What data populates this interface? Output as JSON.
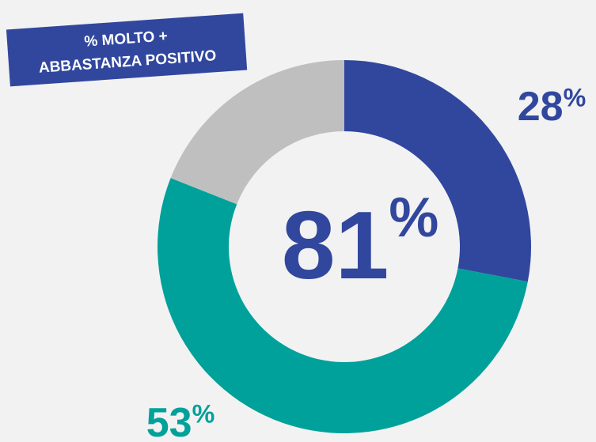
{
  "chart_data": {
    "type": "donut",
    "annotation": [
      "% MOLTO +",
      "ABBASTANZA POSITIVO"
    ],
    "center_label": "81%",
    "values": [
      28,
      53,
      19
    ],
    "value_labels": [
      "28%",
      "53%",
      null
    ],
    "colors": [
      "#31479e",
      "#00a19a",
      "#bfbfbf"
    ]
  }
}
